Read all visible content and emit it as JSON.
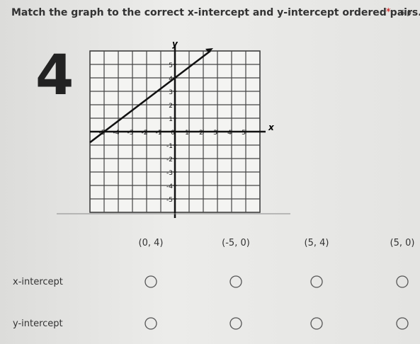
{
  "question": {
    "title": "Match the graph to the correct x-intercept and y-intercept ordered pairs.",
    "required": "*",
    "points": "6 p",
    "number": "4"
  },
  "graph": {
    "xlim": [
      -6,
      6
    ],
    "ylim": [
      -6,
      6
    ],
    "xticks": [
      -5,
      -4,
      -3,
      -2,
      -1,
      0,
      1,
      2,
      3,
      4,
      5
    ],
    "yticks": [
      -5,
      -4,
      -3,
      -2,
      -1,
      1,
      2,
      3,
      4,
      5
    ],
    "x_label": "x",
    "y_label": "y",
    "line": {
      "x": [
        -6,
        2.5
      ],
      "y": [
        -0.8,
        6
      ]
    }
  },
  "columns": [
    "(0, 4)",
    "(-5, 0)",
    "(5, 4)",
    "(5, 0)"
  ],
  "rows": [
    "x-intercept",
    "y-intercept"
  ]
}
